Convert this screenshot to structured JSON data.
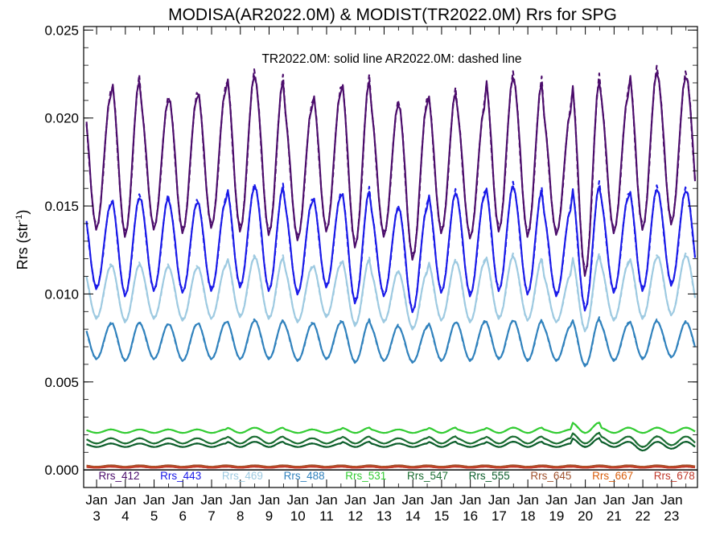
{
  "chart_data": {
    "type": "line",
    "title": "MODISA(AR2022.0M) & MODIST(TR2022.0M)  Rrs for SPG",
    "annotation": "TR2022.0M: solid line   AR2022.0M: dashed line",
    "ylabel": "Rrs (str",
    "ylabel_sup": "-1",
    "ylabel_close": ")",
    "ylim": [
      -0.001,
      0.0252
    ],
    "yticks": [
      "0.000",
      "0.005",
      "0.010",
      "0.015",
      "0.020",
      "0.025"
    ],
    "ytick_values": [
      0.0,
      0.005,
      0.01,
      0.015,
      0.02,
      0.025
    ],
    "x_month_labels": [
      "Jan",
      "Jan",
      "Jan",
      "Jan",
      "Jan",
      "Jan",
      "Jan",
      "Jan",
      "Jan",
      "Jan",
      "Jan",
      "Jan",
      "Jan",
      "Jan",
      "Jan",
      "Jan",
      "Jan",
      "Jan",
      "Jan",
      "Jan",
      "Jan"
    ],
    "x_year_labels": [
      "3",
      "4",
      "5",
      "6",
      "7",
      "8",
      "9",
      "10",
      "11",
      "12",
      "13",
      "14",
      "15",
      "16",
      "17",
      "18",
      "19",
      "20",
      "21",
      "22",
      "23"
    ],
    "xlim": [
      2002.55,
      2023.9
    ],
    "solid_style": "TR2022.0M",
    "dashed_style": "AR2022.0M",
    "series": [
      {
        "name": "Rrs_412",
        "color": "#4b0c6b",
        "base": 0.0175,
        "amp": 0.004,
        "phase": 0.25,
        "summer": [
          0.0213,
          0.0222,
          0.021,
          0.0212,
          0.0216,
          0.0225,
          0.0222,
          0.0206,
          0.0215,
          0.0222,
          0.0208,
          0.0208,
          0.0215,
          0.0206,
          0.0224,
          0.0221,
          0.0204,
          0.0222,
          0.0213,
          0.0227,
          0.0224
        ],
        "winter": [
          0.0137,
          0.0133,
          0.0137,
          0.0135,
          0.0138,
          0.0136,
          0.0134,
          0.0131,
          0.0136,
          0.0127,
          0.0133,
          0.012,
          0.0135,
          0.0132,
          0.0136,
          0.0133,
          0.0134,
          0.0111,
          0.0135,
          0.0137,
          0.014
        ]
      },
      {
        "name": "Rrs_443",
        "color": "#1a1ae8",
        "base": 0.0127,
        "amp": 0.0028,
        "phase": 0.25,
        "summer": [
          0.0151,
          0.0155,
          0.0155,
          0.0152,
          0.0153,
          0.0161,
          0.0161,
          0.0152,
          0.0156,
          0.0159,
          0.0149,
          0.0149,
          0.0158,
          0.0156,
          0.0162,
          0.0159,
          0.0148,
          0.0162,
          0.0155,
          0.016,
          0.0159
        ],
        "winter": [
          0.0103,
          0.0099,
          0.0102,
          0.0101,
          0.0102,
          0.0104,
          0.0102,
          0.01,
          0.0104,
          0.0095,
          0.0099,
          0.009,
          0.0101,
          0.0099,
          0.0102,
          0.01,
          0.0099,
          0.0091,
          0.0101,
          0.0102,
          0.0105
        ]
      },
      {
        "name": "Rrs_469",
        "color": "#9ecae1",
        "base": 0.0102,
        "amp": 0.0018,
        "phase": 0.25,
        "summer": [
          0.0116,
          0.0117,
          0.0116,
          0.0115,
          0.0116,
          0.0121,
          0.0121,
          0.0115,
          0.0117,
          0.012,
          0.0113,
          0.0112,
          0.0119,
          0.0118,
          0.0122,
          0.012,
          0.0111,
          0.0122,
          0.0117,
          0.0121,
          0.0122
        ],
        "winter": [
          0.0086,
          0.0084,
          0.0086,
          0.0085,
          0.0086,
          0.0087,
          0.0086,
          0.0084,
          0.0087,
          0.0082,
          0.0084,
          0.008,
          0.0085,
          0.0084,
          0.0086,
          0.0085,
          0.0084,
          0.0079,
          0.0085,
          0.0086,
          0.0088
        ]
      },
      {
        "name": "Rrs_488",
        "color": "#3182bd",
        "base": 0.0073,
        "amp": 0.0011,
        "phase": 0.25,
        "summer": [
          0.0083,
          0.0084,
          0.0083,
          0.0083,
          0.0084,
          0.0085,
          0.0085,
          0.0083,
          0.0084,
          0.0085,
          0.0082,
          0.0081,
          0.0084,
          0.0084,
          0.0085,
          0.0085,
          0.0082,
          0.0086,
          0.0083,
          0.0085,
          0.0084
        ],
        "winter": [
          0.0063,
          0.0062,
          0.0063,
          0.0062,
          0.0063,
          0.0063,
          0.0063,
          0.0062,
          0.0063,
          0.0061,
          0.0062,
          0.0061,
          0.0062,
          0.0062,
          0.0063,
          0.0062,
          0.0062,
          0.0059,
          0.0062,
          0.0063,
          0.0064
        ]
      },
      {
        "name": "Rrs_531",
        "color": "#33cc33",
        "base": 0.0022,
        "amp": 0.00018,
        "phase": 0.25,
        "summer": [
          0.0023,
          0.0023,
          0.0023,
          0.0023,
          0.0023,
          0.0024,
          0.0024,
          0.0023,
          0.0023,
          0.0024,
          0.0023,
          0.0023,
          0.0024,
          0.0023,
          0.0024,
          0.0024,
          0.0023,
          0.0027,
          0.0024,
          0.0024,
          0.0024
        ],
        "winter": [
          0.0021,
          0.0021,
          0.0021,
          0.0021,
          0.0021,
          0.0021,
          0.0021,
          0.0021,
          0.0021,
          0.0021,
          0.0021,
          0.0021,
          0.0021,
          0.0021,
          0.0021,
          0.0021,
          0.0021,
          0.0021,
          0.0021,
          0.0021,
          0.0021
        ]
      },
      {
        "name": "Rrs_547",
        "color": "#1b6e32",
        "base": 0.0017,
        "amp": 0.00017,
        "phase": 0.25,
        "summer": [
          0.0018,
          0.0018,
          0.0018,
          0.0018,
          0.0018,
          0.0019,
          0.0019,
          0.0018,
          0.0018,
          0.0019,
          0.0018,
          0.0018,
          0.0019,
          0.0018,
          0.0019,
          0.0019,
          0.0018,
          0.0021,
          0.0019,
          0.0019,
          0.0019
        ],
        "winter": [
          0.0015,
          0.0015,
          0.0015,
          0.0015,
          0.0015,
          0.0015,
          0.0015,
          0.0015,
          0.0015,
          0.0015,
          0.0015,
          0.0015,
          0.0015,
          0.0015,
          0.0015,
          0.0015,
          0.0015,
          0.0015,
          0.0015,
          0.0013,
          0.0014
        ]
      },
      {
        "name": "Rrs_555",
        "color": "#0b5d2a",
        "base": 0.00142,
        "amp": 0.00015,
        "phase": 0.25,
        "summer": [
          0.0015,
          0.0015,
          0.0015,
          0.0015,
          0.0015,
          0.0016,
          0.0016,
          0.0015,
          0.0015,
          0.0016,
          0.0015,
          0.0015,
          0.0016,
          0.0015,
          0.0016,
          0.0016,
          0.0015,
          0.0018,
          0.0016,
          0.0016,
          0.0016
        ],
        "winter": [
          0.0013,
          0.0013,
          0.0013,
          0.0013,
          0.0013,
          0.0013,
          0.0013,
          0.0013,
          0.0013,
          0.0013,
          0.0013,
          0.0013,
          0.0013,
          0.0013,
          0.0013,
          0.0013,
          0.0013,
          0.0013,
          0.0013,
          0.0011,
          0.0012
        ]
      },
      {
        "name": "Rrs_645",
        "color": "#a0522d",
        "base": 0.00022,
        "amp": 4e-05,
        "phase": 0.25,
        "summer": [
          0.00026,
          0.00026,
          0.00026,
          0.00026,
          0.00026,
          0.00026,
          0.00026,
          0.00026,
          0.00026,
          0.00026,
          0.00026,
          0.00026,
          0.00026,
          0.00026,
          0.00026,
          0.00026,
          0.00026,
          0.00026,
          0.00026,
          0.00026,
          0.00026
        ],
        "winter": [
          0.00018,
          0.00018,
          0.00018,
          0.00018,
          0.00018,
          0.00018,
          0.00018,
          0.00018,
          0.00018,
          0.00018,
          0.00018,
          0.00018,
          0.00018,
          0.00018,
          0.00018,
          0.00018,
          0.00018,
          0.00018,
          0.00018,
          0.00018,
          0.00018
        ]
      },
      {
        "name": "Rrs_667",
        "color": "#d95f0e",
        "base": 0.00016,
        "amp": 3e-05,
        "phase": 0.25,
        "summer": [
          0.00019,
          0.00019,
          0.00019,
          0.00019,
          0.00019,
          0.00019,
          0.00019,
          0.00019,
          0.00019,
          0.00019,
          0.00019,
          0.00019,
          0.00019,
          0.00019,
          0.00019,
          0.00019,
          0.00019,
          0.00019,
          0.00019,
          0.00019,
          0.00019
        ],
        "winter": [
          0.00013,
          0.00013,
          0.00013,
          0.00013,
          0.00013,
          0.00013,
          0.00013,
          0.00013,
          0.00013,
          0.00013,
          0.00013,
          0.00013,
          0.00013,
          0.00013,
          0.00013,
          0.00013,
          0.00013,
          0.00013,
          0.00013,
          0.00013,
          0.00013
        ]
      },
      {
        "name": "Rrs_678",
        "color": "#c0392b",
        "base": 0.00015,
        "amp": 3e-05,
        "phase": 0.25,
        "summer": [
          0.00018,
          0.00018,
          0.00018,
          0.00018,
          0.00018,
          0.00018,
          0.00018,
          0.00018,
          0.00018,
          0.00018,
          0.00018,
          0.00018,
          0.00018,
          0.00018,
          0.00018,
          0.00018,
          0.00018,
          0.00018,
          0.00018,
          0.00018,
          0.00018
        ],
        "winter": [
          0.00012,
          0.00012,
          0.00012,
          0.00012,
          0.00012,
          0.00012,
          0.00012,
          0.00012,
          0.00012,
          0.00012,
          0.00012,
          0.00012,
          0.00012,
          0.00012,
          0.00012,
          0.00012,
          0.00012,
          0.00012,
          0.00012,
          0.00012,
          0.00012
        ]
      }
    ],
    "zero_line": true,
    "grid": false,
    "legend_placement": "bottom"
  }
}
